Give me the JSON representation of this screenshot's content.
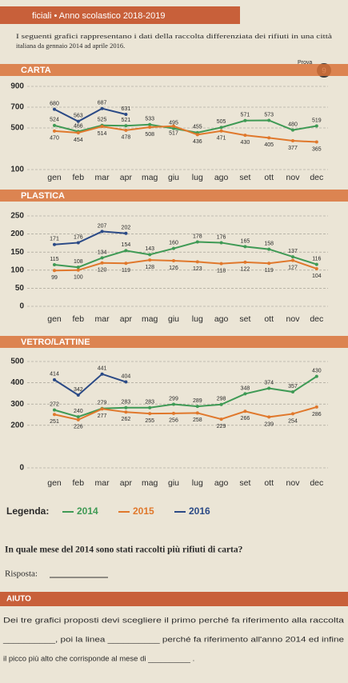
{
  "header": "ficiali • Anno scolastico 2018-2019",
  "intro": [
    "I seguenti grafici rappresentano i dati della raccolta differenziata dei rifiuti in una città",
    "italiana da gennaio 2014 ad aprile 2016."
  ],
  "badge": {
    "label": "Prova",
    "number": "9"
  },
  "chart_data": [
    {
      "type": "line",
      "title": "CARTA",
      "categories": [
        "gen",
        "feb",
        "mar",
        "apr",
        "mag",
        "giu",
        "lug",
        "ago",
        "set",
        "ott",
        "nov",
        "dec"
      ],
      "ylim": [
        100,
        900
      ],
      "yticks": [
        100,
        500,
        700,
        900
      ],
      "series": [
        {
          "name": "2014",
          "color": "#3f9a55",
          "values": [
            524,
            466,
            525,
            521,
            533,
            495,
            455,
            505,
            571,
            573,
            480,
            519
          ]
        },
        {
          "name": "2015",
          "color": "#e0782c",
          "values": [
            470,
            454,
            514,
            478,
            508,
            517,
            436,
            471,
            430,
            405,
            377,
            365
          ]
        },
        {
          "name": "2016",
          "color": "#2b4a86",
          "values": [
            680,
            563,
            687,
            631,
            null,
            null,
            null,
            null,
            null,
            null,
            null,
            null
          ]
        }
      ]
    },
    {
      "type": "line",
      "title": "PLASTICA",
      "categories": [
        "gen",
        "feb",
        "mar",
        "apr",
        "mag",
        "giu",
        "lug",
        "ago",
        "set",
        "ott",
        "nov",
        "dec"
      ],
      "ylim": [
        0,
        250
      ],
      "yticks": [
        0,
        50,
        100,
        150,
        200,
        250
      ],
      "series": [
        {
          "color": "#3f9a55",
          "values": [
            115,
            108,
            134,
            154,
            143,
            160,
            178,
            176,
            165,
            158,
            137,
            116
          ]
        },
        {
          "color": "#e0782c",
          "values": [
            99,
            100,
            120,
            119,
            128,
            126,
            123,
            118,
            122,
            119,
            127,
            104
          ]
        },
        {
          "color": "#2b4a86",
          "values": [
            171,
            176,
            207,
            202,
            null,
            null,
            null,
            null,
            null,
            null,
            null,
            null
          ]
        }
      ]
    },
    {
      "type": "line",
      "title": "VETRO/LATTINE",
      "categories": [
        "gen",
        "feb",
        "mar",
        "apr",
        "mag",
        "giu",
        "lug",
        "ago",
        "set",
        "ott",
        "nov",
        "dec"
      ],
      "ylim": [
        0,
        500
      ],
      "yticks": [
        0,
        200,
        300,
        400,
        500
      ],
      "series": [
        {
          "color": "#3f9a55",
          "values": [
            272,
            240,
            279,
            283,
            283,
            299,
            289,
            298,
            348,
            374,
            357,
            430
          ]
        },
        {
          "color": "#e0782c",
          "values": [
            251,
            226,
            277,
            262,
            255,
            256,
            258,
            229,
            266,
            239,
            254,
            286
          ]
        },
        {
          "color": "#2b4a86",
          "values": [
            414,
            342,
            441,
            404,
            null,
            null,
            null,
            null,
            null,
            null,
            null,
            null
          ]
        }
      ]
    }
  ],
  "legend_title": "Legenda:",
  "question": "In quale mese del 2014 sono stati raccolti più rifiuti di carta?",
  "answer_label": "Risposta:",
  "help": {
    "title": "AIUTO",
    "lines": [
      "Dei tre grafici proposti devi scegliere il primo perché fa riferimento alla raccolta",
      "__________, poi la linea __________ perché fa riferimento all'anno 2014 ed infine",
      "il picco più alto che corrisponde al mese di __________ ."
    ]
  }
}
